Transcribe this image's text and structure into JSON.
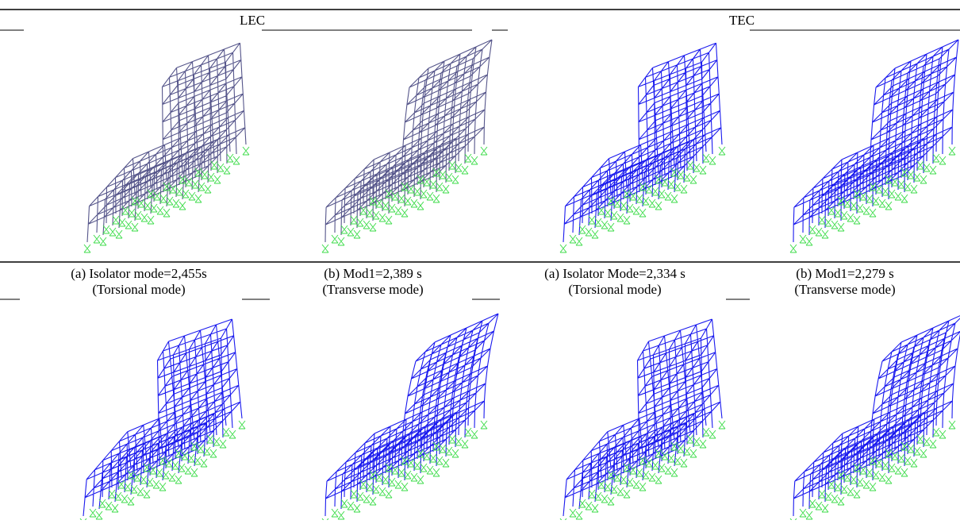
{
  "table": {
    "headers": [
      "LEC",
      "TEC"
    ],
    "captions": [
      [
        "(a) Isolator mode=2,455s",
        "(Torsional mode)"
      ],
      [
        "(b) Mod1=2,389 s",
        "(Transverse mode)"
      ],
      [
        "(a) Isolator Mode=2,334 s",
        "(Torsional mode)"
      ],
      [
        "(b) Mod1=2,279 s",
        "(Transverse mode)"
      ]
    ]
  }
}
